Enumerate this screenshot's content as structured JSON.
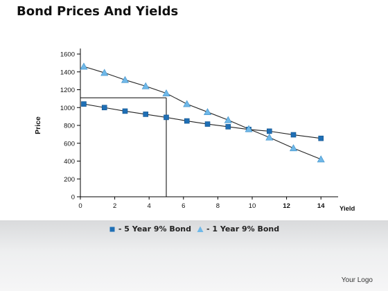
{
  "header": {
    "title": "Bond Prices And Yields"
  },
  "footer": {
    "logo_text": "Your Logo"
  },
  "chart_data": {
    "type": "line",
    "title": "",
    "xlabel": "Yield",
    "ylabel": "Price",
    "xlim": [
      0,
      15
    ],
    "ylim": [
      0,
      1600
    ],
    "x_ticks": [
      "0",
      "2",
      "4",
      "6",
      "8",
      "10",
      "12",
      "14"
    ],
    "y_ticks": [
      "0",
      "200",
      "400",
      "600",
      "800",
      "1000",
      "1200",
      "1400",
      "1600"
    ],
    "grid": false,
    "legend_position": "bottom",
    "series": [
      {
        "name": "- 5 Year 9% Bond",
        "marker": "square",
        "color": "#1f6fb5",
        "x": [
          0.2,
          1.4,
          2.6,
          3.8,
          5.0,
          6.2,
          7.4,
          8.6,
          9.8,
          11.0,
          12.4,
          14.0
        ],
        "y": [
          1040,
          1000,
          960,
          925,
          890,
          850,
          815,
          785,
          755,
          735,
          695,
          655
        ]
      },
      {
        "name": "- 1 Year 9% Bond",
        "marker": "triangle",
        "color": "#6fb8e8",
        "x": [
          0.2,
          1.4,
          2.6,
          3.8,
          5.0,
          6.2,
          7.4,
          8.6,
          9.8,
          11.0,
          12.4,
          14.0
        ],
        "y": [
          1460,
          1390,
          1310,
          1240,
          1160,
          1040,
          950,
          860,
          760,
          665,
          545,
          420
        ]
      }
    ],
    "reference_lines": {
      "x": 5.0,
      "y": 1110
    }
  }
}
